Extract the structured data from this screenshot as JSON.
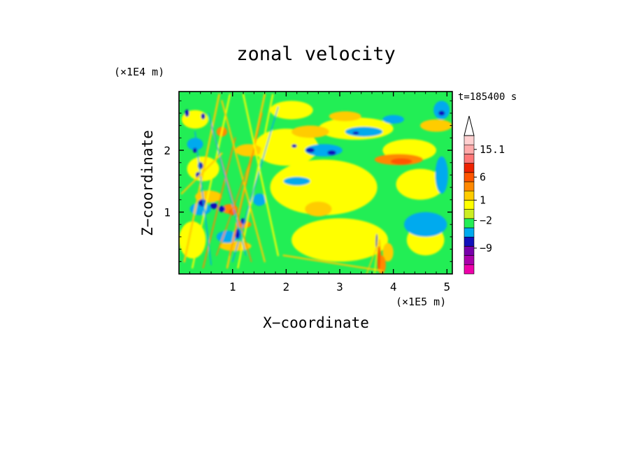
{
  "chart_data": {
    "type": "heatmap",
    "title": "zonal velocity",
    "time_label": "t=185400 s",
    "xlabel": "X−coordinate",
    "ylabel": "Z−coordinate",
    "x_unit": "(×1E5 m)",
    "y_unit": "(×1E4 m)",
    "xlim": [
      0,
      5.1
    ],
    "ylim": [
      0,
      2.95
    ],
    "x_ticks": [
      {
        "v": 1,
        "label": "1"
      },
      {
        "v": 2,
        "label": "2"
      },
      {
        "v": 3,
        "label": "3"
      },
      {
        "v": 4,
        "label": "4"
      },
      {
        "v": 5,
        "label": "5"
      }
    ],
    "y_ticks": [
      {
        "v": 1,
        "label": "1"
      },
      {
        "v": 2,
        "label": "2"
      }
    ],
    "background_color": "#22ee55",
    "colorbar": {
      "levels": [
        {
          "color": "#ee00aa"
        },
        {
          "color": "#aa00aa"
        },
        {
          "color": "#7700aa"
        },
        {
          "color": "#1111bb"
        },
        {
          "color": "#00aaee"
        },
        {
          "color": "#22ee55"
        },
        {
          "color": "#ccee22"
        },
        {
          "color": "#ffff00"
        },
        {
          "color": "#ffcc00"
        },
        {
          "color": "#ff8800"
        },
        {
          "color": "#ff5500"
        },
        {
          "color": "#ee2200"
        },
        {
          "color": "#ff7777"
        },
        {
          "color": "#ffaaaa"
        },
        {
          "color": "#ffd0d0"
        }
      ],
      "labels": [
        {
          "value": "15.1",
          "level": 13.5
        },
        {
          "value": "6",
          "level": 10.5
        },
        {
          "value": "1",
          "level": 8
        },
        {
          "value": "−2",
          "level": 5.8
        },
        {
          "value": "−9",
          "level": 2.8
        }
      ]
    },
    "regions": [
      {
        "color": "#ffff00",
        "x": 2.7,
        "z": 1.4,
        "rx": 1.0,
        "rz": 0.45
      },
      {
        "color": "#ffff00",
        "x": 3.0,
        "z": 0.55,
        "rx": 0.9,
        "rz": 0.35
      },
      {
        "color": "#ffff00",
        "x": 4.5,
        "z": 1.45,
        "rx": 0.45,
        "rz": 0.25
      },
      {
        "color": "#ffff00",
        "x": 4.6,
        "z": 0.55,
        "rx": 0.35,
        "rz": 0.25
      },
      {
        "color": "#ffff00",
        "x": 2.0,
        "z": 2.05,
        "rx": 0.6,
        "rz": 0.3
      },
      {
        "color": "#ffff00",
        "x": 3.3,
        "z": 2.35,
        "rx": 0.7,
        "rz": 0.18
      },
      {
        "color": "#ffff00",
        "x": 4.3,
        "z": 2.0,
        "rx": 0.5,
        "rz": 0.18
      },
      {
        "color": "#ffff00",
        "x": 2.1,
        "z": 2.65,
        "rx": 0.4,
        "rz": 0.15
      },
      {
        "color": "#ffcc00",
        "x": 2.6,
        "z": 1.05,
        "rx": 0.25,
        "rz": 0.12
      },
      {
        "color": "#ffcc00",
        "x": 2.45,
        "z": 2.3,
        "rx": 0.35,
        "rz": 0.1
      },
      {
        "color": "#ffcc00",
        "x": 3.1,
        "z": 2.55,
        "rx": 0.3,
        "rz": 0.08
      },
      {
        "color": "#ff8800",
        "x": 4.1,
        "z": 1.85,
        "rx": 0.45,
        "rz": 0.09
      },
      {
        "color": "#ff5500",
        "x": 4.15,
        "z": 1.82,
        "rx": 0.2,
        "rz": 0.05
      },
      {
        "color": "#ffcc00",
        "x": 4.8,
        "z": 2.4,
        "rx": 0.3,
        "rz": 0.1
      },
      {
        "color": "#00aaee",
        "x": 3.45,
        "z": 2.3,
        "rx": 0.35,
        "rz": 0.08
      },
      {
        "color": "#00aaee",
        "x": 2.7,
        "z": 2.0,
        "rx": 0.35,
        "rz": 0.1
      },
      {
        "color": "#00aaee",
        "x": 2.2,
        "z": 1.5,
        "rx": 0.25,
        "rz": 0.07
      },
      {
        "color": "#00aaee",
        "x": 4.6,
        "z": 0.8,
        "rx": 0.4,
        "rz": 0.2
      },
      {
        "color": "#00aaee",
        "x": 4.0,
        "z": 2.5,
        "rx": 0.2,
        "rz": 0.07
      },
      {
        "color": "#00aaee",
        "x": 4.9,
        "z": 2.65,
        "rx": 0.15,
        "rz": 0.15
      },
      {
        "color": "#00aaee",
        "x": 4.9,
        "z": 1.6,
        "rx": 0.12,
        "rz": 0.3
      },
      {
        "color": "#1111bb",
        "x": 2.45,
        "z": 2.0,
        "rx": 0.08,
        "rz": 0.04
      },
      {
        "color": "#1111bb",
        "x": 2.85,
        "z": 1.96,
        "rx": 0.08,
        "rz": 0.04
      },
      {
        "color": "#1111bb",
        "x": 3.3,
        "z": 2.28,
        "rx": 0.06,
        "rz": 0.025
      },
      {
        "color": "#1111bb",
        "x": 4.9,
        "z": 2.6,
        "rx": 0.06,
        "rz": 0.04
      },
      {
        "color": "#1111bb",
        "x": 2.15,
        "z": 2.07,
        "rx": 0.05,
        "rz": 0.03
      },
      {
        "color": "#ffff00",
        "x": 0.3,
        "z": 2.5,
        "rx": 0.25,
        "rz": 0.15
      },
      {
        "color": "#ffff00",
        "x": 0.45,
        "z": 1.7,
        "rx": 0.3,
        "rz": 0.2
      },
      {
        "color": "#ffff00",
        "x": 0.25,
        "z": 0.55,
        "rx": 0.25,
        "rz": 0.3
      },
      {
        "color": "#ffcc00",
        "x": 0.55,
        "z": 1.25,
        "rx": 0.25,
        "rz": 0.1
      },
      {
        "color": "#ffcc00",
        "x": 1.05,
        "z": 0.45,
        "rx": 0.3,
        "rz": 0.08
      },
      {
        "color": "#ffcc00",
        "x": 1.3,
        "z": 2.0,
        "rx": 0.25,
        "rz": 0.1
      },
      {
        "color": "#ff8800",
        "x": 0.95,
        "z": 1.05,
        "rx": 0.15,
        "rz": 0.08
      },
      {
        "color": "#ff8800",
        "x": 1.2,
        "z": 0.8,
        "rx": 0.15,
        "rz": 0.06
      },
      {
        "color": "#ff8800",
        "x": 0.8,
        "z": 2.3,
        "rx": 0.1,
        "rz": 0.08
      },
      {
        "color": "#ff5500",
        "x": 1.0,
        "z": 1.0,
        "rx": 0.07,
        "rz": 0.05
      },
      {
        "color": "#00aaee",
        "x": 0.3,
        "z": 2.1,
        "rx": 0.15,
        "rz": 0.1
      },
      {
        "color": "#00aaee",
        "x": 0.4,
        "z": 1.05,
        "rx": 0.2,
        "rz": 0.1
      },
      {
        "color": "#00aaee",
        "x": 1.5,
        "z": 1.2,
        "rx": 0.12,
        "rz": 0.1
      },
      {
        "color": "#00aaee",
        "x": 0.9,
        "z": 0.6,
        "rx": 0.2,
        "rz": 0.1
      },
      {
        "color": "#1111bb",
        "x": 0.44,
        "z": 1.15,
        "rx": 0.08,
        "rz": 0.06
      },
      {
        "color": "#1111bb",
        "x": 0.65,
        "z": 1.1,
        "rx": 0.07,
        "rz": 0.05
      },
      {
        "color": "#1111bb",
        "x": 0.8,
        "z": 1.05,
        "rx": 0.06,
        "rz": 0.05
      },
      {
        "color": "#1111bb",
        "x": 0.4,
        "z": 1.75,
        "rx": 0.05,
        "rz": 0.06
      },
      {
        "color": "#1111bb",
        "x": 0.45,
        "z": 2.55,
        "rx": 0.04,
        "rz": 0.05
      },
      {
        "color": "#1111bb",
        "x": 0.15,
        "z": 2.6,
        "rx": 0.04,
        "rz": 0.06
      },
      {
        "color": "#1111bb",
        "x": 0.35,
        "z": 1.6,
        "rx": 0.04,
        "rz": 0.05
      },
      {
        "color": "#1111bb",
        "x": 1.1,
        "z": 0.65,
        "rx": 0.06,
        "rz": 0.08
      },
      {
        "color": "#1111bb",
        "x": 1.2,
        "z": 0.85,
        "rx": 0.05,
        "rz": 0.05
      },
      {
        "color": "#1111bb",
        "x": 0.3,
        "z": 2.0,
        "rx": 0.04,
        "rz": 0.04
      },
      {
        "color": "#ffcc00",
        "x": 3.9,
        "z": 0.35,
        "rx": 0.1,
        "rz": 0.15
      },
      {
        "color": "#ff8800",
        "x": 3.78,
        "z": 0.15,
        "rx": 0.08,
        "rz": 0.15
      },
      {
        "color": "#ff5500",
        "x": 3.73,
        "z": 0.25,
        "rx": 0.03,
        "rz": 0.2
      },
      {
        "color": "#1111bb",
        "x": 3.69,
        "z": 0.5,
        "rx": 0.02,
        "rz": 0.15
      }
    ],
    "stripes": [
      {
        "color": "#ffcc00",
        "x1": 0.1,
        "z1": 0.2,
        "x2": 0.75,
        "z2": 2.9,
        "w": 0.035
      },
      {
        "color": "#ffff00",
        "x1": 0.25,
        "z1": 0.1,
        "x2": 0.95,
        "z2": 2.9,
        "w": 0.03
      },
      {
        "color": "#ff8800",
        "x1": 0.45,
        "z1": 0.1,
        "x2": 1.05,
        "z2": 2.2,
        "w": 0.025
      },
      {
        "color": "#00aaee",
        "x1": 0.6,
        "z1": 0.15,
        "x2": 0.3,
        "z2": 2.3,
        "w": 0.02
      },
      {
        "color": "#ffcc00",
        "x1": 0.9,
        "z1": 0.1,
        "x2": 1.6,
        "z2": 2.9,
        "w": 0.035
      },
      {
        "color": "#ffff00",
        "x1": 1.1,
        "z1": 0.1,
        "x2": 1.75,
        "z2": 2.9,
        "w": 0.03
      },
      {
        "color": "#ff8800",
        "x1": 0.95,
        "z1": 0.3,
        "x2": 1.55,
        "z2": 2.6,
        "w": 0.02
      },
      {
        "color": "#00aaee",
        "x1": 1.0,
        "z1": 0.2,
        "x2": 1.85,
        "z2": 2.7,
        "w": 0.02
      },
      {
        "color": "#ff8800",
        "x1": 1.35,
        "z1": 0.2,
        "x2": 0.6,
        "z2": 2.4,
        "w": 0.02
      },
      {
        "color": "#ffcc00",
        "x1": 1.6,
        "z1": 0.2,
        "x2": 0.8,
        "z2": 2.8,
        "w": 0.03
      },
      {
        "color": "#00aaee",
        "x1": 1.25,
        "z1": 0.3,
        "x2": 0.55,
        "z2": 2.6,
        "w": 0.018
      },
      {
        "color": "#ffff00",
        "x1": 1.85,
        "z1": 0.3,
        "x2": 1.2,
        "z2": 2.9,
        "w": 0.03
      },
      {
        "color": "#ff8800",
        "x1": 0.7,
        "z1": 0.3,
        "x2": 1.4,
        "z2": 2.0,
        "w": 0.02
      },
      {
        "color": "#ffcc00",
        "x1": 0.05,
        "z1": 1.3,
        "x2": 0.8,
        "z2": 1.95,
        "w": 0.03
      },
      {
        "color": "#ffcc00",
        "x1": 1.95,
        "z1": 0.3,
        "x2": 3.8,
        "z2": 0.05,
        "w": 0.03
      },
      {
        "color": "#ffff00",
        "x1": 3.65,
        "z1": 0.0,
        "x2": 3.73,
        "z2": 0.7,
        "w": 0.02
      },
      {
        "color": "#ff8800",
        "x1": 3.8,
        "z1": 0.0,
        "x2": 3.74,
        "z2": 0.55,
        "w": 0.015
      },
      {
        "color": "#ffcc00",
        "x1": 3.5,
        "z1": 0.0,
        "x2": 3.72,
        "z2": 0.5,
        "w": 0.02
      }
    ]
  }
}
